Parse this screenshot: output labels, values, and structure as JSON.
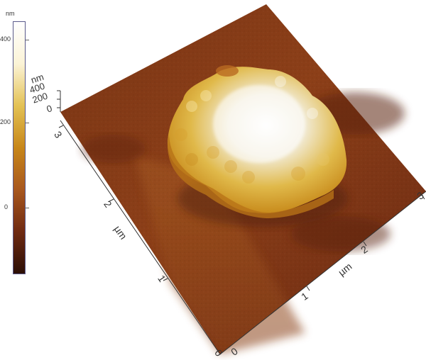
{
  "colorbar": {
    "unit": "nm",
    "ticks": [
      "400",
      "200",
      "0"
    ],
    "colors": [
      "#2c0f06",
      "#6f2a12",
      "#a8571e",
      "#c7861a",
      "#e3c154",
      "#fbf3d6",
      "#ffffff"
    ]
  },
  "plot3d": {
    "z_unit": "nm",
    "z_ticks": [
      "400",
      "200",
      "0"
    ],
    "x_unit": "µm",
    "x_ticks": [
      "0",
      "1",
      "2",
      "3"
    ],
    "y_unit": "µm",
    "y_ticks": [
      "0",
      "1",
      "2",
      "3"
    ],
    "surface_colors": {
      "low": "#6b2a13",
      "mid": "#9a4b1e",
      "high": "#c89020",
      "peak": "#f4ecd8"
    }
  }
}
